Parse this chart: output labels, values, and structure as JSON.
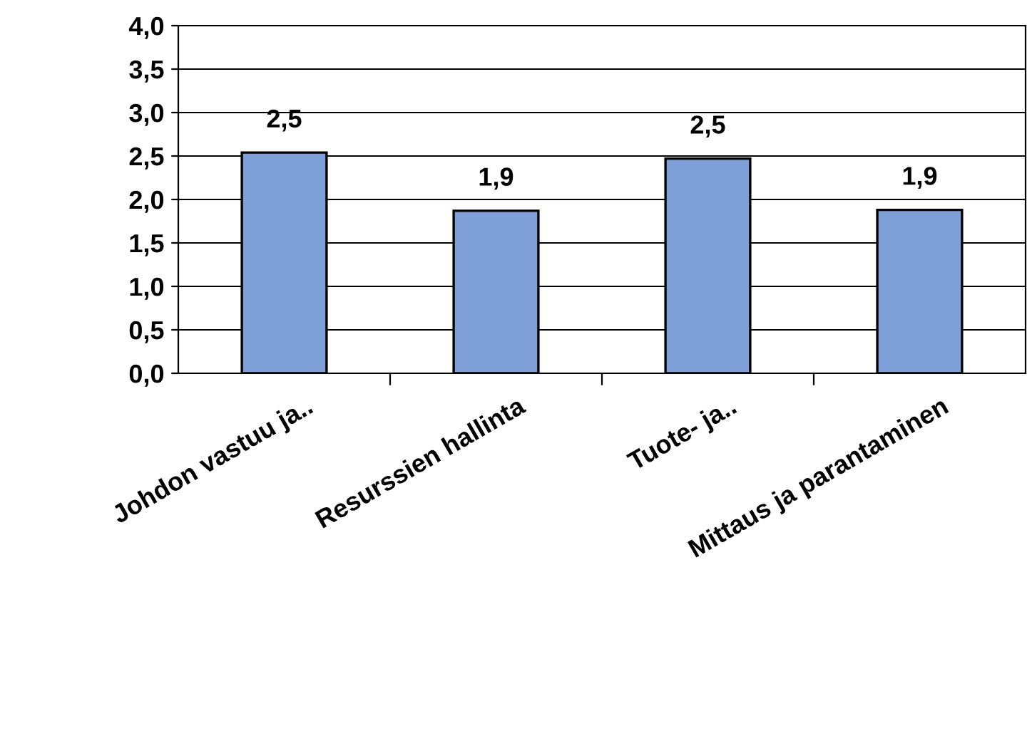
{
  "chart_data": {
    "type": "bar",
    "categories": [
      "Johdon vastuu ja..",
      "Resurssien hallinta",
      "Tuote- ja..",
      "Mittaus ja parantaminen"
    ],
    "values": [
      2.54,
      1.87,
      2.47,
      1.88
    ],
    "value_labels": [
      "2,5",
      "1,9",
      "2,5",
      "1,9"
    ],
    "color": "#7f9fd9",
    "ylim": [
      0,
      4
    ],
    "yticks": [
      {
        "value": 0,
        "label": "0,0"
      },
      {
        "value": 0.5,
        "label": "0,5"
      },
      {
        "value": 1,
        "label": "1,0"
      },
      {
        "value": 1.5,
        "label": "1,5"
      },
      {
        "value": 2,
        "label": "2,0"
      },
      {
        "value": 2.5,
        "label": "2,5"
      },
      {
        "value": 3,
        "label": "3,0"
      },
      {
        "value": 3.5,
        "label": "3,5"
      },
      {
        "value": 4,
        "label": "4,0"
      }
    ],
    "grid": "y",
    "legend": false
  }
}
